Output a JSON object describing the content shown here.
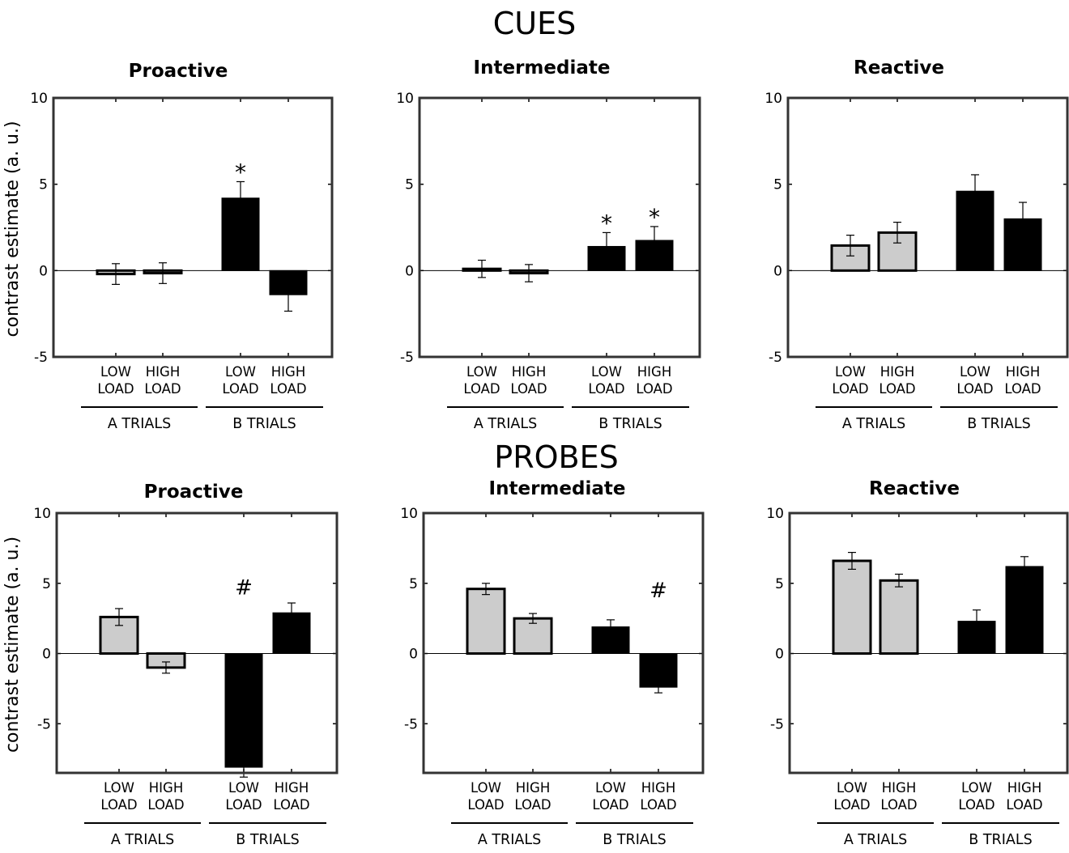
{
  "sections": [
    {
      "title": "CUES"
    },
    {
      "title": "PROBES"
    }
  ],
  "ylabel": "contrast estimate (a. u.)",
  "chart_data": [
    {
      "type": "bar",
      "section": "CUES",
      "title": "Proactive",
      "ylabel": "contrast estimate (a. u.)",
      "ylim": [
        -5,
        10
      ],
      "yticks": [
        -5,
        0,
        5,
        10
      ],
      "groups": [
        {
          "name": "A TRIALS",
          "bars": [
            0,
            1
          ]
        },
        {
          "name": "B TRIALS",
          "bars": [
            2,
            3
          ]
        }
      ],
      "categories": [
        "LOW LOAD",
        "HIGH LOAD",
        "LOW LOAD",
        "HIGH LOAD"
      ],
      "values": [
        -0.2,
        -0.15,
        4.2,
        -1.4
      ],
      "errors": [
        0.6,
        0.6,
        0.95,
        0.95
      ],
      "colors": [
        "#cccccc",
        "#cccccc",
        "#000000",
        "#000000"
      ],
      "annotations": [
        {
          "bar": 2,
          "text": "*"
        }
      ]
    },
    {
      "type": "bar",
      "section": "CUES",
      "title": "Intermediate",
      "ylabel": "",
      "ylim": [
        -5,
        10
      ],
      "yticks": [
        -5,
        0,
        5,
        10
      ],
      "groups": [
        {
          "name": "A TRIALS",
          "bars": [
            0,
            1
          ]
        },
        {
          "name": "B TRIALS",
          "bars": [
            2,
            3
          ]
        }
      ],
      "categories": [
        "LOW LOAD",
        "HIGH LOAD",
        "LOW LOAD",
        "HIGH LOAD"
      ],
      "values": [
        0.1,
        -0.15,
        1.4,
        1.75
      ],
      "errors": [
        0.5,
        0.5,
        0.8,
        0.8
      ],
      "colors": [
        "#cccccc",
        "#cccccc",
        "#000000",
        "#000000"
      ],
      "annotations": [
        {
          "bar": 2,
          "text": "*"
        },
        {
          "bar": 3,
          "text": "*"
        }
      ]
    },
    {
      "type": "bar",
      "section": "CUES",
      "title": "Reactive",
      "ylabel": "",
      "ylim": [
        -5,
        10
      ],
      "yticks": [
        -5,
        0,
        5,
        10
      ],
      "groups": [
        {
          "name": "A TRIALS",
          "bars": [
            0,
            1
          ]
        },
        {
          "name": "B TRIALS",
          "bars": [
            2,
            3
          ]
        }
      ],
      "categories": [
        "LOW LOAD",
        "HIGH LOAD",
        "LOW LOAD",
        "HIGH LOAD"
      ],
      "values": [
        1.45,
        2.2,
        4.6,
        3.0
      ],
      "errors": [
        0.6,
        0.6,
        0.95,
        0.95
      ],
      "colors": [
        "#cccccc",
        "#cccccc",
        "#000000",
        "#000000"
      ],
      "annotations": []
    },
    {
      "type": "bar",
      "section": "PROBES",
      "title": "Proactive",
      "ylabel": "contrast estimate (a. u.)",
      "ylim": [
        -8.5,
        10
      ],
      "yticks": [
        -5,
        0,
        5,
        10
      ],
      "groups": [
        {
          "name": "A TRIALS",
          "bars": [
            0,
            1
          ]
        },
        {
          "name": "B TRIALS",
          "bars": [
            2,
            3
          ]
        }
      ],
      "categories": [
        "LOW LOAD",
        "HIGH LOAD",
        "LOW LOAD",
        "HIGH LOAD"
      ],
      "values": [
        2.6,
        -1.0,
        -8.1,
        2.9
      ],
      "errors": [
        0.6,
        0.4,
        0.7,
        0.7
      ],
      "colors": [
        "#cccccc",
        "#cccccc",
        "#000000",
        "#000000"
      ],
      "annotations": [
        {
          "bar": 2,
          "text": "#",
          "y": 4.2
        }
      ]
    },
    {
      "type": "bar",
      "section": "PROBES",
      "title": "Intermediate",
      "ylabel": "",
      "ylim": [
        -8.5,
        10
      ],
      "yticks": [
        -5,
        0,
        5,
        10
      ],
      "groups": [
        {
          "name": "A TRIALS",
          "bars": [
            0,
            1
          ]
        },
        {
          "name": "B TRIALS",
          "bars": [
            2,
            3
          ]
        }
      ],
      "categories": [
        "LOW LOAD",
        "HIGH LOAD",
        "LOW LOAD",
        "HIGH LOAD"
      ],
      "values": [
        4.6,
        2.5,
        1.9,
        -2.4
      ],
      "errors": [
        0.4,
        0.35,
        0.5,
        0.4
      ],
      "colors": [
        "#cccccc",
        "#cccccc",
        "#000000",
        "#000000"
      ],
      "annotations": [
        {
          "bar": 3,
          "text": "#",
          "y": 4.0
        }
      ]
    },
    {
      "type": "bar",
      "section": "PROBES",
      "title": "Reactive",
      "ylabel": "",
      "ylim": [
        -8.5,
        10
      ],
      "yticks": [
        -5,
        0,
        5,
        10
      ],
      "groups": [
        {
          "name": "A TRIALS",
          "bars": [
            0,
            1
          ]
        },
        {
          "name": "B TRIALS",
          "bars": [
            2,
            3
          ]
        }
      ],
      "categories": [
        "LOW LOAD",
        "HIGH LOAD",
        "LOW LOAD",
        "HIGH LOAD"
      ],
      "values": [
        6.6,
        5.2,
        2.3,
        6.2
      ],
      "errors": [
        0.6,
        0.45,
        0.8,
        0.7
      ],
      "colors": [
        "#cccccc",
        "#cccccc",
        "#000000",
        "#000000"
      ],
      "annotations": []
    }
  ]
}
